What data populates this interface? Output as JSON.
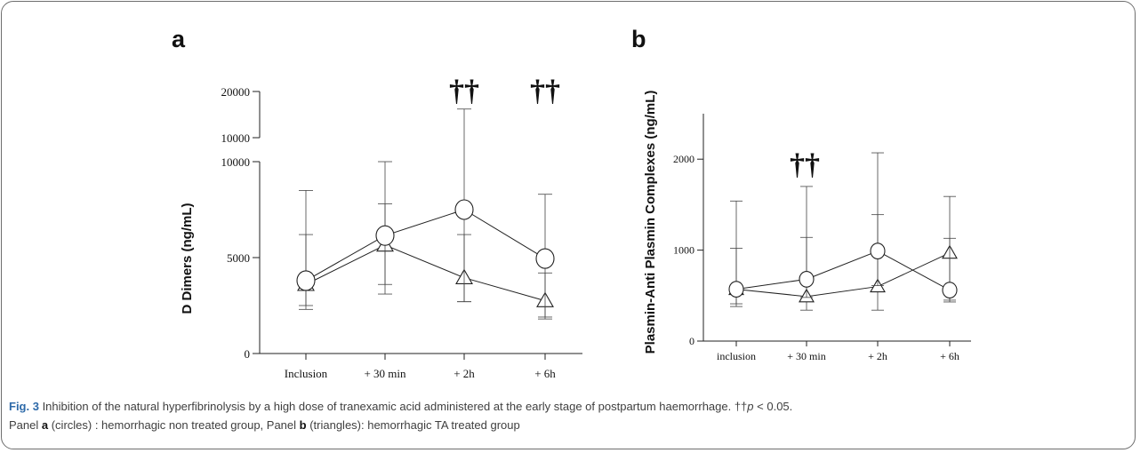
{
  "figure": {
    "caption_label": "Fig. 3",
    "caption_text": " Inhibition of the natural hyperfibrinolysis by a high dose of tranexamic acid administered at the early stage of postpartum haemorrhage. ††",
    "caption_p": "p",
    "caption_sig": " < 0.05.",
    "caption_line2_a": "Panel ",
    "caption_panel_a": "a",
    "caption_line2_b": " (circles) : hemorrhagic non treated group, Panel ",
    "caption_panel_b": "b",
    "caption_line2_c": " (triangles): hemorrhagic TA treated group"
  },
  "chart_data": [
    {
      "panel": "a",
      "type": "line",
      "ylabel": "D Dimers (ng/mL)",
      "categories": [
        "Inclusion",
        "+ 30 min",
        "+ 2h",
        "+ 6h"
      ],
      "yaxis": {
        "broken": true,
        "lower": {
          "range": [
            0,
            10000
          ],
          "ticks": [
            "0",
            "5000",
            "10000"
          ]
        },
        "upper": {
          "range": [
            10000,
            20000
          ],
          "ticks": [
            "10000",
            "20000"
          ]
        }
      },
      "annotations": [
        {
          "text": "††",
          "category": "+ 2h"
        },
        {
          "text": "††",
          "category": "+ 6h"
        }
      ],
      "series": [
        {
          "marker": "circle",
          "values": [
            3800,
            6150,
            7500,
            4950
          ],
          "err_high": [
            8500,
            10000,
            16200,
            8300
          ],
          "err_low": [
            2500,
            3600,
            2700,
            1900
          ]
        },
        {
          "marker": "triangle",
          "values": [
            3600,
            5650,
            3950,
            2750
          ],
          "err_high": [
            6200,
            7800,
            6200,
            4200
          ],
          "err_low": [
            2300,
            3100,
            2700,
            1800
          ]
        }
      ]
    },
    {
      "panel": "b",
      "type": "line",
      "ylabel": "Plasmin-Anti Plasmin Complexes (ng/mL)",
      "categories": [
        "inclusion",
        "+ 30 min",
        "+ 2h",
        "+ 6h"
      ],
      "yaxis": {
        "range": [
          0,
          2500
        ],
        "ticks": [
          "0",
          "1000",
          "2000"
        ]
      },
      "annotations": [
        {
          "text": "††",
          "category": "+ 30 min"
        }
      ],
      "series": [
        {
          "marker": "circle",
          "values": [
            570,
            680,
            990,
            560
          ],
          "err_high": [
            1540,
            1700,
            2070,
            1590
          ],
          "err_low": [
            380,
            480,
            610,
            430
          ]
        },
        {
          "marker": "triangle",
          "values": [
            570,
            490,
            600,
            970
          ],
          "err_high": [
            1020,
            1140,
            1390,
            1130
          ],
          "err_low": [
            410,
            340,
            340,
            450
          ]
        }
      ]
    }
  ]
}
